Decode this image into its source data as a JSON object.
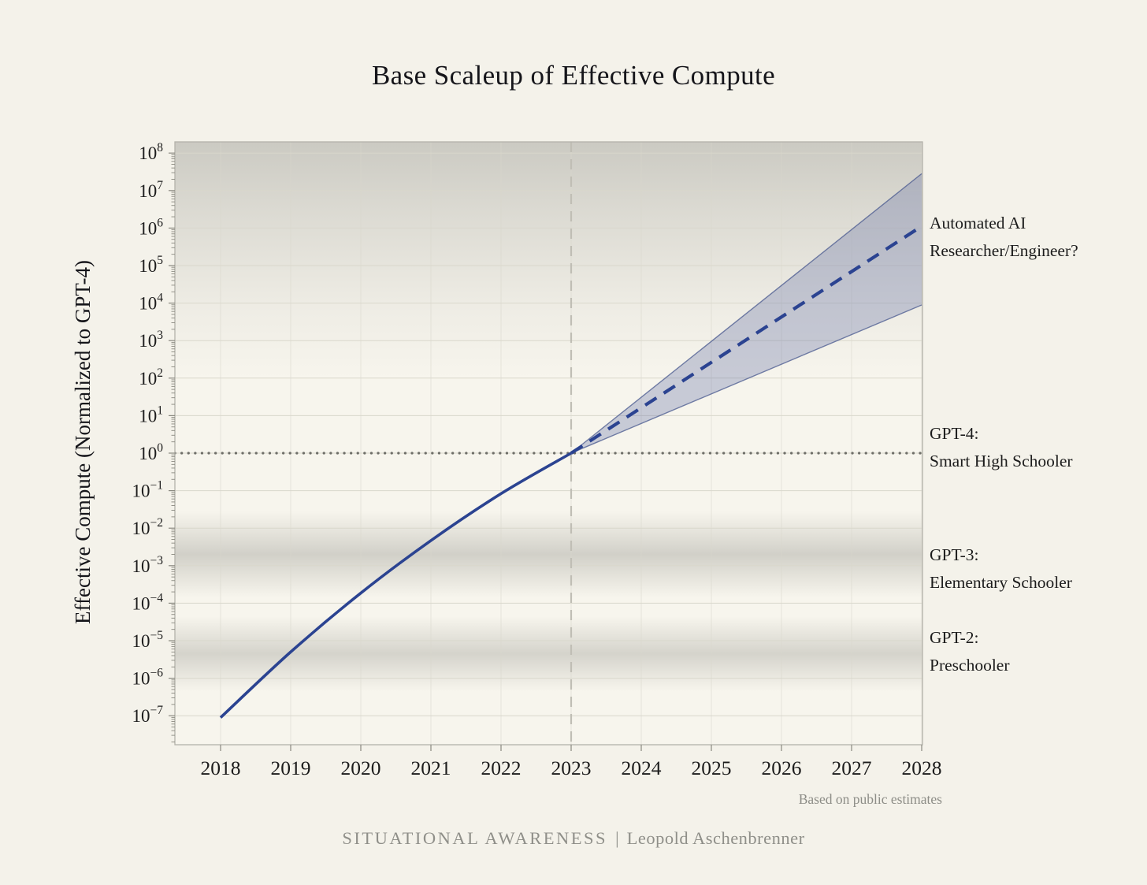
{
  "figure": {
    "brand": "SITUATIONAL AWARENESS",
    "brand_separator": "|",
    "brand_author": "Leopold Aschenbrenner"
  },
  "chart_data": {
    "type": "line",
    "title": "Base Scaleup of Effective Compute",
    "xlabel": "",
    "ylabel": "Effective Compute (Normalized to GPT-4)",
    "caption": "Based on public estimates",
    "y_scale": "log10",
    "y_unit": "effective compute relative to GPT-4",
    "y_tick_exponent_range": [
      -7,
      8
    ],
    "x_ticks": [
      2018,
      2019,
      2020,
      2021,
      2022,
      2023,
      2024,
      2025,
      2026,
      2027,
      2028
    ],
    "grid": true,
    "series": [
      {
        "name": "historical-effective-compute",
        "style": "solid",
        "x": [
          2018,
          2019,
          2020,
          2021,
          2022,
          2023
        ],
        "y_exponents": [
          -7.05,
          -5.3,
          -3.73,
          -2.33,
          -1.08,
          0
        ]
      },
      {
        "name": "projected-effective-compute",
        "style": "dashed",
        "x": [
          2023,
          2028
        ],
        "y_exponents": [
          0,
          6.05
        ]
      }
    ],
    "uncertainty_band": {
      "name": "projection-uncertainty-cone",
      "x": [
        2023,
        2028
      ],
      "upper_exponents": [
        0,
        7.45
      ],
      "lower_exponents": [
        0,
        3.95
      ]
    },
    "reference_lines": {
      "gpt4_level_exponent": 0,
      "forecast_start_year": 2023
    },
    "shaded_bands": [
      {
        "name": "automated-researcher-band",
        "top_exponent": 8.5,
        "bottom_exponent": 2.0,
        "stops": [
          [
            0,
            0.4
          ],
          [
            0.3,
            0.25
          ],
          [
            0.7,
            0.08
          ],
          [
            1,
            0
          ]
        ]
      },
      {
        "name": "gpt3-band",
        "top_exponent": -1.55,
        "bottom_exponent": -3.85,
        "stops": [
          [
            0,
            0
          ],
          [
            0.5,
            0.33
          ],
          [
            1,
            0
          ]
        ]
      },
      {
        "name": "gpt2-band",
        "top_exponent": -4.35,
        "bottom_exponent": -6.35,
        "stops": [
          [
            0,
            0
          ],
          [
            0.5,
            0.3
          ],
          [
            1,
            0
          ]
        ]
      }
    ],
    "annotations": [
      {
        "name": "automated-ai",
        "lines": [
          "Automated AI",
          "Researcher/Engineer?"
        ],
        "y_exponent": 5.6
      },
      {
        "name": "gpt4",
        "lines": [
          "GPT-4:",
          "Smart High Schooler"
        ],
        "y_exponent": 0.2
      },
      {
        "name": "gpt3",
        "lines": [
          "GPT-3:",
          "Elementary Schooler"
        ],
        "y_exponent": -3.1
      },
      {
        "name": "gpt2",
        "lines": [
          "GPT-2:",
          "Preschooler"
        ],
        "y_exponent": -5.25
      }
    ],
    "colors": {
      "background": "#f4f2ea",
      "plot_bg": "#f7f5ed",
      "line": "#2b4391",
      "cone": "#6673a8",
      "cone_edge": "#49598f",
      "band": "#85857e",
      "grid": "#d9d7cc",
      "hline": "#6e6e68",
      "vline": "#c0beb5",
      "spine": "#b3b2aa",
      "tick": "#8a8980",
      "text": "#1c1c1c",
      "muted": "#8d8d87"
    }
  }
}
